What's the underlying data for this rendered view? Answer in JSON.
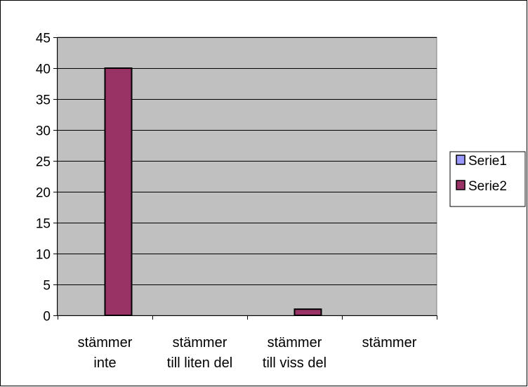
{
  "chart_data": {
    "type": "bar",
    "categories": [
      [
        "stämmer",
        "inte"
      ],
      [
        "stämmer",
        "till liten del"
      ],
      [
        "stämmer",
        "till viss del"
      ],
      [
        "stämmer"
      ]
    ],
    "series": [
      {
        "name": "Serie1",
        "values": [
          0,
          0,
          0,
          0
        ],
        "color": "#9999ff"
      },
      {
        "name": "Serie2",
        "values": [
          40,
          0,
          1,
          0
        ],
        "color": "#993366"
      }
    ],
    "ylim": [
      0,
      45
    ],
    "yticks": [
      0,
      5,
      10,
      15,
      20,
      25,
      30,
      35,
      40,
      45
    ],
    "grid": true,
    "plot_background": "#c0c0c0",
    "legend": "right"
  }
}
